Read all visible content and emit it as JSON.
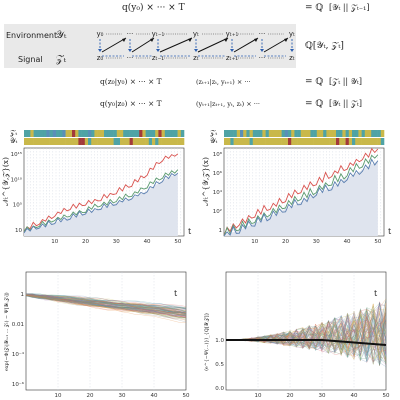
{
  "diagram": {
    "row1_left": "q(y₀) × ··· × T",
    "row1_left_sub": "E",
    "row1_left_sup": "⋆",
    "row1_left_args": "(y",
    "row1_left_tail": "|yₜ, zₜ)",
    "row1_right": "= ℚ",
    "row1_right_sub": "F",
    "row1_right_args": "[𝒴ₜ || 𝒵ₜ₋₁]",
    "row2_right": "ℚ[𝒴ₜ, 𝒵ₜ]",
    "row3_left": "q(z₀|y₀) × ··· × T",
    "row3_left_tail": "(zₜ₊₁|zₜ, yₜ₊₁) × ···",
    "row3_right": "= ℚ",
    "row3_right_args": "[𝒵ₜ || 𝒴ₜ]",
    "row4_left": "q(y₀|z₀) × ··· × T",
    "row4_left_tail": "(yₜ₊₁|zₜ₊₁, yₜ, zₜ) × ···",
    "row4_right": "= ℚ",
    "row4_right_sub": "B",
    "row4_right_args": "[𝒴ₜ || 𝒵ₜ]",
    "environment_label": "Environment",
    "env_symbol": "𝒴ₜ",
    "signal_label": "Signal",
    "sig_symbol": "𝒵ₜ",
    "nodes_top": [
      "y₀",
      "···",
      "yₜ₋₁",
      "yₜ",
      "yₜ₊₁",
      "···",
      "yₜ"
    ],
    "nodes_bottom": [
      "z₀",
      "···",
      "zₜ₋₁",
      "zₜ",
      "zₜ₊₁",
      "···",
      "zₜ"
    ]
  },
  "panels": {
    "strip_labels": [
      "𝒵ₜ",
      "𝒴ₜ"
    ],
    "ylabel_mid": "𝒩ₜ^{𝒴,𝒵}(x)",
    "ylabel_bl": "exp(−Φ(𝒵ₜ|𝒴ₜ₊₁ ... 𝒵ₜ) − Ψ[𝒴ₜ,𝒵ₜ])",
    "ylabel_br": "⟨e^{−Ψ(...)}⟩_{ℚ[𝒴,𝒵]}",
    "xlabel": "t",
    "x_ticks": [
      "10",
      "20",
      "30",
      "40",
      "50"
    ],
    "left_y_ticks": [
      "10¹⁵",
      "10¹⁰",
      "10⁵",
      "10"
    ],
    "right_y_ticks": [
      "10⁸",
      "10⁶",
      "10⁴",
      "10²",
      "1"
    ],
    "bl_y_ticks": [
      "1",
      "0.01",
      "10⁻⁴",
      "10⁻⁶"
    ],
    "br_y_ticks": [
      "1.0",
      "0.5",
      "0.0"
    ]
  },
  "chart_data": [
    {
      "type": "line",
      "title": "",
      "xlabel": "t",
      "ylabel": "𝒩ₜ^{𝒴,𝒵}(x)",
      "yscale": "log",
      "xlim": [
        0,
        52
      ],
      "ylim": [
        1,
        1000000000000000.0
      ],
      "x": [
        0,
        5,
        10,
        15,
        20,
        25,
        30,
        35,
        40,
        45,
        50
      ],
      "series": [
        {
          "color": "#d9534f",
          "values": [
            10,
            200,
            3000,
            50000,
            300000.0,
            2000000.0,
            30000000.0,
            500000000.0,
            40000000000.0,
            10000000000000.0,
            100000000000000.0
          ]
        },
        {
          "color": "#5a9a6e",
          "values": [
            8,
            60,
            600,
            4000,
            20000,
            200000.0,
            1000000.0,
            10000000.0,
            300000000.0,
            10000000000.0,
            200000000000.0
          ]
        },
        {
          "color": "#5b7fb0",
          "values": [
            6,
            30,
            200,
            1500,
            8000,
            60000,
            400000.0,
            3000000.0,
            50000000.0,
            3000000000.0,
            50000000000.0
          ]
        }
      ]
    },
    {
      "type": "line",
      "title": "",
      "xlabel": "t",
      "ylabel": "𝒩ₜ^{𝒴,𝒵}(x)",
      "yscale": "log",
      "xlim": [
        0,
        52
      ],
      "ylim": [
        1,
        1000000000.0
      ],
      "x": [
        0,
        5,
        10,
        15,
        20,
        25,
        30,
        35,
        40,
        45,
        50
      ],
      "series": [
        {
          "color": "#d9534f",
          "values": [
            2,
            20,
            150,
            800,
            6000,
            50000,
            300000.0,
            2000000.0,
            10000000.0,
            100000000.0,
            800000000.0
          ]
        },
        {
          "color": "#5a9a6e",
          "values": [
            1.5,
            8,
            40,
            200,
            1500,
            8000,
            50000,
            300000.0,
            2000000.0,
            20000000.0,
            200000000.0
          ]
        },
        {
          "color": "#5b7fb0",
          "values": [
            1.2,
            4,
            20,
            100,
            600,
            3000,
            20000,
            100000.0,
            800000.0,
            6000000.0,
            50000000.0
          ]
        }
      ]
    }
  ]
}
